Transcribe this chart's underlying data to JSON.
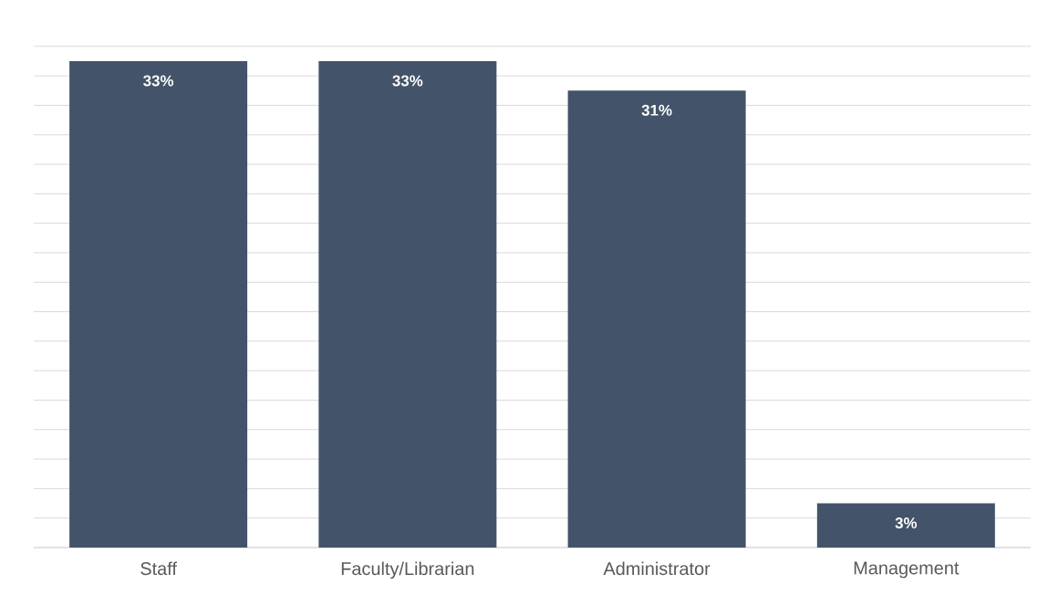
{
  "chart_data": {
    "type": "bar",
    "categories": [
      "Staff",
      "Faculty/Librarian",
      "Administrator",
      "Management"
    ],
    "values": [
      33,
      33,
      31,
      3
    ],
    "value_labels": [
      "33%",
      "33%",
      "31%",
      "3%"
    ],
    "color": "#435369",
    "grid": "y",
    "tick_labels": "x"
  }
}
